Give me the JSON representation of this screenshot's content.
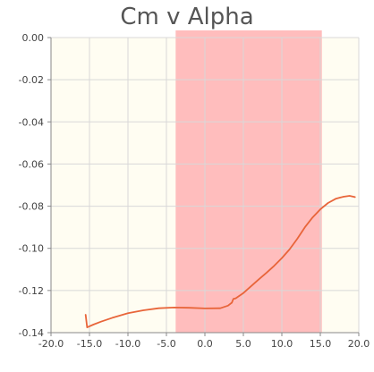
{
  "chart_data": {
    "type": "line",
    "title": "Cm v Alpha",
    "xlabel": "",
    "ylabel": "",
    "xlim": [
      -20,
      20
    ],
    "ylim": [
      -0.14,
      0
    ],
    "x_ticks": [
      "-20.0",
      "-15.0",
      "-10.0",
      "-5.0",
      "0.0",
      "5.0",
      "10.0",
      "15.0",
      "20.0"
    ],
    "y_ticks": [
      "0.00",
      "-0.02",
      "-0.04",
      "-0.06",
      "-0.08",
      "-0.10",
      "-0.12",
      "-0.14"
    ],
    "grid": true,
    "highlight_band": {
      "x_from": -3.8,
      "x_to": 15.2
    },
    "colors": {
      "plot_background": "#fffdf2",
      "band": "#ffbdbd",
      "line": "#e8653a",
      "grid": "#d8d8d8",
      "axis": "#888888"
    },
    "series": [
      {
        "points": [
          [
            -15.5,
            -0.1315
          ],
          [
            -15.3,
            -0.1375
          ],
          [
            -14.5,
            -0.1362
          ],
          [
            -13.5,
            -0.1348
          ],
          [
            -12.0,
            -0.1329
          ],
          [
            -10.0,
            -0.1308
          ],
          [
            -8.0,
            -0.1294
          ],
          [
            -6.0,
            -0.1284
          ],
          [
            -4.0,
            -0.1281
          ],
          [
            -2.0,
            -0.1282
          ],
          [
            0.0,
            -0.1285
          ],
          [
            2.0,
            -0.1284
          ],
          [
            3.0,
            -0.1272
          ],
          [
            3.5,
            -0.1258
          ],
          [
            3.7,
            -0.124
          ],
          [
            4.0,
            -0.1237
          ],
          [
            5.0,
            -0.1212
          ],
          [
            6.0,
            -0.118
          ],
          [
            7.0,
            -0.1147
          ],
          [
            8.0,
            -0.1116
          ],
          [
            9.0,
            -0.1083
          ],
          [
            10.0,
            -0.1046
          ],
          [
            11.0,
            -0.1005
          ],
          [
            12.0,
            -0.0955
          ],
          [
            13.0,
            -0.09
          ],
          [
            14.0,
            -0.0853
          ],
          [
            15.0,
            -0.0815
          ],
          [
            16.0,
            -0.0785
          ],
          [
            17.0,
            -0.0765
          ],
          [
            18.0,
            -0.0755
          ],
          [
            18.8,
            -0.0751
          ],
          [
            19.5,
            -0.0757
          ]
        ]
      }
    ]
  }
}
